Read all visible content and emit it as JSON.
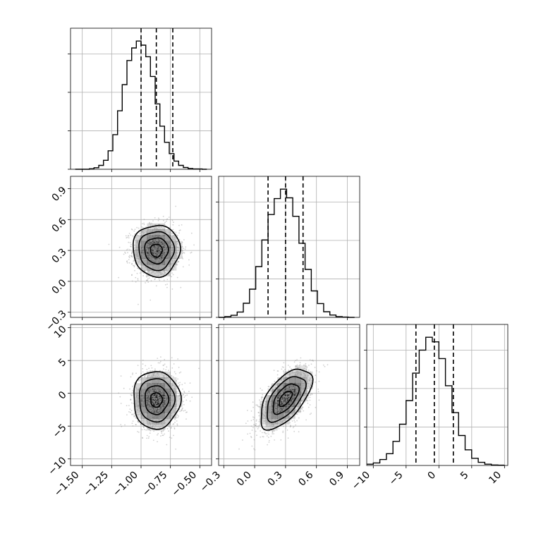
{
  "chart_data": {
    "type": "corner",
    "title": "",
    "parameters": [
      {
        "index": 0,
        "label": "",
        "hist_range": [
          -1.6,
          -0.4
        ],
        "ticks": [
          -1.5,
          -1.25,
          -1.0,
          -0.75,
          -0.5
        ],
        "tick_labels": [
          "−1.50",
          "−1.25",
          "−1.00",
          "−0.75",
          "−0.50"
        ],
        "quantiles": [
          -1.0,
          -0.87,
          -0.73
        ]
      },
      {
        "index": 1,
        "label": "",
        "hist_range": [
          -0.35,
          1.02
        ],
        "ticks": [
          -0.3,
          0.0,
          0.3,
          0.6,
          0.9
        ],
        "tick_labels": [
          "−0.3",
          "0.0",
          "0.3",
          "0.6",
          "0.9"
        ],
        "quantiles": [
          0.13,
          0.3,
          0.47
        ]
      },
      {
        "index": 2,
        "label": "",
        "hist_range": [
          -11.0,
          10.5
        ],
        "ticks": [
          -10,
          -5,
          0,
          5,
          10
        ],
        "tick_labels": [
          "−10",
          "−5",
          "0",
          "5",
          "10"
        ],
        "quantiles": [
          -3.5,
          -0.7,
          2.2
        ]
      }
    ],
    "histograms": [
      {
        "param": 0,
        "bins": [
          -1.56,
          -1.52,
          -1.48,
          -1.44,
          -1.4,
          -1.36,
          -1.32,
          -1.28,
          -1.24,
          -1.2,
          -1.16,
          -1.12,
          -1.08,
          -1.04,
          -1.0,
          -0.96,
          -0.92,
          -0.88,
          -0.84,
          -0.8,
          -0.76,
          -0.72,
          -0.68,
          -0.64,
          -0.6,
          -0.56,
          -0.52,
          -0.48,
          -0.44
        ],
        "counts": [
          0,
          0,
          0,
          0.2,
          0.6,
          1.5,
          3.5,
          7.2,
          13.5,
          22.8,
          33.0,
          42.4,
          47.3,
          50.0,
          48.4,
          43.9,
          36.2,
          25.5,
          16.8,
          10.5,
          6.1,
          3.2,
          1.5,
          0.7,
          0.3,
          0.1,
          0.1,
          0
        ],
        "yticks": [
          0,
          15,
          30,
          45
        ],
        "quantiles": [
          -1.0,
          -0.87,
          -0.73
        ]
      },
      {
        "param": 1,
        "bins": [
          -0.35,
          -0.29,
          -0.23,
          -0.17,
          -0.11,
          -0.05,
          0.01,
          0.07,
          0.13,
          0.19,
          0.25,
          0.31,
          0.37,
          0.43,
          0.49,
          0.55,
          0.61,
          0.67,
          0.73,
          0.79,
          0.85,
          0.91,
          0.97
        ],
        "counts": [
          0,
          0.3,
          0.8,
          2.1,
          5.5,
          11.0,
          19.8,
          30.2,
          40.1,
          46.3,
          50.0,
          46.6,
          39.4,
          28.9,
          18.7,
          10.3,
          5.4,
          2.2,
          0.9,
          0.3,
          0.1,
          0
        ],
        "yticks": [
          0,
          15,
          30,
          45
        ],
        "quantiles": [
          0.13,
          0.3,
          0.47
        ]
      },
      {
        "param": 2,
        "bins": [
          -11,
          -10,
          -9,
          -8,
          -7,
          -6,
          -5,
          -4,
          -3,
          -2,
          -1,
          0,
          1,
          2,
          3,
          4,
          5,
          6,
          7,
          8,
          9,
          10
        ],
        "counts": [
          0.5,
          1.0,
          2.3,
          4.6,
          9.4,
          16.1,
          25.3,
          36.0,
          45.0,
          50.0,
          48.2,
          41.7,
          31.1,
          20.6,
          11.7,
          6.1,
          2.8,
          1.2,
          0.5,
          0.2,
          0.1
        ],
        "yticks": [
          15,
          30,
          45
        ],
        "quantiles": [
          -3.5,
          -0.7,
          2.2
        ]
      }
    ],
    "pairs": [
      {
        "x_param": 0,
        "y_param": 1,
        "mean": [
          -0.87,
          0.3
        ],
        "sd": [
          0.1,
          0.125
        ],
        "rho": 0.0,
        "levels": [
          0.5,
          1.0,
          1.5,
          2.0
        ]
      },
      {
        "x_param": 0,
        "y_param": 2,
        "mean": [
          -0.87,
          -1.0
        ],
        "sd": [
          0.1,
          2.2
        ],
        "rho": 0.0,
        "levels": [
          0.5,
          1.0,
          1.5,
          2.0
        ]
      },
      {
        "x_param": 1,
        "y_param": 2,
        "mean": [
          0.3,
          -0.8
        ],
        "sd": [
          0.125,
          2.3
        ],
        "rho": 0.6,
        "levels": [
          0.5,
          1.0,
          1.5,
          2.0
        ]
      }
    ],
    "grid": true,
    "colors": {
      "line": "#000000",
      "grid": "#b0b0b0",
      "points": "#9a9a9a",
      "density": "#000000"
    }
  }
}
